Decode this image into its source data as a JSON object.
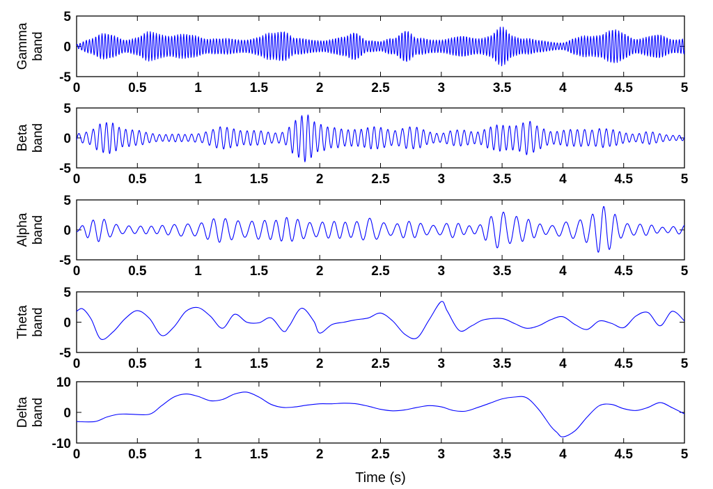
{
  "chart_data": [
    {
      "type": "line",
      "ylabel": [
        "Gamma",
        "band"
      ],
      "xlabel": "",
      "xlim": [
        0,
        5
      ],
      "ylim": [
        -5,
        5
      ],
      "xticks": [
        "0",
        "0.5",
        "1",
        "1.5",
        "2",
        "2.5",
        "3",
        "3.5",
        "4",
        "4.5",
        "5"
      ],
      "yticks": [
        "5",
        "0",
        "-5"
      ],
      "ytick_values": [
        5,
        0,
        -5
      ],
      "color": "#0000ff",
      "grid": false,
      "series": [
        {
          "oscillation_hz": 40,
          "x": [
            0,
            0.1,
            0.2,
            0.3,
            0.4,
            0.5,
            0.6,
            0.7,
            0.8,
            0.9,
            1.0,
            1.1,
            1.2,
            1.3,
            1.4,
            1.5,
            1.6,
            1.7,
            1.8,
            1.9,
            2.0,
            2.1,
            2.2,
            2.3,
            2.4,
            2.5,
            2.6,
            2.7,
            2.8,
            2.9,
            3.0,
            3.1,
            3.2,
            3.3,
            3.4,
            3.5,
            3.6,
            3.7,
            3.8,
            3.9,
            4.0,
            4.1,
            4.2,
            4.3,
            4.4,
            4.5,
            4.6,
            4.7,
            4.8,
            4.9,
            5.0
          ],
          "envelope": [
            0.4,
            1.6,
            2.2,
            2.0,
            1.5,
            1.7,
            2.5,
            2.6,
            2.2,
            2.0,
            2.1,
            1.6,
            1.3,
            1.4,
            1.5,
            1.6,
            2.4,
            3.6,
            1.5,
            1.2,
            1.3,
            1.4,
            1.6,
            3.0,
            1.2,
            0.8,
            1.6,
            3.6,
            1.4,
            1.3,
            1.5,
            1.6,
            1.8,
            1.8,
            2.0,
            3.3,
            2.2,
            1.6,
            1.0,
            0.9,
            0.8,
            1.4,
            2.0,
            2.6,
            2.9,
            2.4,
            1.7,
            1.8,
            2.0,
            1.6,
            1.6
          ]
        }
      ]
    },
    {
      "type": "line",
      "ylabel": [
        "Beta",
        "band"
      ],
      "xlabel": "",
      "xlim": [
        0,
        5
      ],
      "ylim": [
        -5,
        5
      ],
      "xticks": [
        "0",
        "0.5",
        "1",
        "1.5",
        "2",
        "2.5",
        "3",
        "3.5",
        "4",
        "4.5",
        "5"
      ],
      "yticks": [
        "5",
        "0",
        "-5"
      ],
      "ytick_values": [
        5,
        0,
        -5
      ],
      "color": "#0000ff",
      "grid": false,
      "series": [
        {
          "oscillation_hz": 18,
          "x": [
            0,
            0.1,
            0.2,
            0.3,
            0.4,
            0.5,
            0.6,
            0.7,
            0.8,
            0.9,
            1.0,
            1.1,
            1.2,
            1.3,
            1.4,
            1.5,
            1.6,
            1.7,
            1.8,
            1.9,
            2.0,
            2.1,
            2.2,
            2.3,
            2.4,
            2.5,
            2.6,
            2.7,
            2.8,
            2.9,
            3.0,
            3.1,
            3.2,
            3.3,
            3.4,
            3.5,
            3.6,
            3.7,
            3.8,
            3.9,
            4.0,
            4.1,
            4.2,
            4.3,
            4.4,
            4.5,
            4.6,
            4.7,
            4.8,
            4.9,
            5.0
          ],
          "envelope": [
            1.0,
            1.4,
            2.4,
            3.0,
            2.0,
            1.3,
            0.9,
            0.8,
            0.7,
            0.6,
            1.0,
            1.5,
            1.9,
            2.0,
            1.5,
            1.2,
            1.1,
            1.3,
            3.0,
            4.5,
            3.2,
            1.8,
            1.5,
            2.0,
            2.0,
            1.8,
            1.7,
            2.1,
            1.8,
            1.3,
            1.0,
            1.3,
            1.5,
            1.4,
            1.9,
            2.4,
            2.9,
            3.1,
            2.0,
            1.5,
            1.5,
            1.4,
            1.8,
            2.0,
            1.4,
            1.1,
            0.9,
            1.1,
            0.8,
            0.6,
            0.5
          ]
        }
      ]
    },
    {
      "type": "line",
      "ylabel": [
        "Alpha",
        "band"
      ],
      "xlabel": "",
      "xlim": [
        0,
        5
      ],
      "ylim": [
        -5,
        5
      ],
      "xticks": [
        "0",
        "0.5",
        "1",
        "1.5",
        "2",
        "2.5",
        "3",
        "3.5",
        "4",
        "4.5",
        "5"
      ],
      "yticks": [
        "5",
        "0",
        "-5"
      ],
      "ytick_values": [
        5,
        0,
        -5
      ],
      "color": "#0000ff",
      "grid": false,
      "series": [
        {
          "oscillation_hz": 10,
          "x": [
            0,
            0.1,
            0.2,
            0.3,
            0.4,
            0.5,
            0.6,
            0.7,
            0.8,
            0.9,
            1.0,
            1.1,
            1.2,
            1.3,
            1.4,
            1.5,
            1.6,
            1.7,
            1.8,
            1.9,
            2.0,
            2.1,
            2.2,
            2.3,
            2.4,
            2.5,
            2.6,
            2.7,
            2.8,
            2.9,
            3.0,
            3.1,
            3.2,
            3.3,
            3.4,
            3.5,
            3.6,
            3.7,
            3.8,
            3.9,
            4.0,
            4.1,
            4.2,
            4.3,
            4.4,
            4.5,
            4.6,
            4.7,
            4.8,
            4.9,
            5.0
          ],
          "envelope": [
            0.5,
            1.6,
            2.0,
            1.4,
            0.8,
            0.6,
            0.8,
            1.0,
            0.9,
            1.2,
            1.5,
            1.8,
            2.2,
            2.3,
            1.4,
            1.6,
            2.2,
            2.4,
            1.8,
            1.7,
            1.6,
            1.4,
            1.6,
            1.9,
            2.0,
            1.5,
            1.3,
            1.5,
            1.3,
            1.1,
            1.0,
            1.3,
            1.0,
            0.9,
            2.2,
            3.9,
            3.0,
            1.8,
            1.2,
            1.0,
            1.3,
            1.5,
            3.0,
            4.4,
            3.2,
            1.6,
            1.1,
            0.9,
            0.6,
            0.7,
            0.8
          ]
        }
      ]
    },
    {
      "type": "line",
      "ylabel": [
        "Theta",
        "band"
      ],
      "xlabel": "",
      "xlim": [
        0,
        5
      ],
      "ylim": [
        -5,
        5
      ],
      "xticks": [
        "0",
        "0.5",
        "1",
        "1.5",
        "2",
        "2.5",
        "3",
        "3.5",
        "4",
        "4.5",
        "5"
      ],
      "yticks": [
        "5",
        "0",
        "-5"
      ],
      "ytick_values": [
        5,
        0,
        -5
      ],
      "color": "#0000ff",
      "grid": false,
      "series": [
        {
          "x": [
            0,
            0.05,
            0.12,
            0.2,
            0.3,
            0.4,
            0.5,
            0.6,
            0.7,
            0.8,
            0.9,
            1.0,
            1.1,
            1.2,
            1.3,
            1.4,
            1.5,
            1.6,
            1.7,
            1.75,
            1.85,
            1.95,
            2.0,
            2.1,
            2.2,
            2.3,
            2.4,
            2.5,
            2.6,
            2.7,
            2.8,
            2.9,
            3.0,
            3.05,
            3.15,
            3.25,
            3.35,
            3.5,
            3.6,
            3.7,
            3.8,
            3.9,
            4.0,
            4.1,
            4.2,
            4.3,
            4.4,
            4.5,
            4.6,
            4.7,
            4.8,
            4.9,
            5.0
          ],
          "y": [
            1.8,
            2.2,
            0.5,
            -2.8,
            -1.6,
            0.6,
            1.9,
            0.6,
            -2.2,
            -0.8,
            1.8,
            2.4,
            1.0,
            -1.0,
            1.3,
            0.0,
            -0.1,
            0.7,
            -1.5,
            -0.6,
            2.3,
            0.2,
            -1.8,
            -0.4,
            0.0,
            0.4,
            0.7,
            1.5,
            0.2,
            -2.0,
            -2.6,
            0.4,
            3.4,
            1.8,
            -1.4,
            -0.6,
            0.4,
            0.6,
            -0.2,
            -1.0,
            -0.6,
            0.4,
            0.9,
            -0.4,
            -1.2,
            0.2,
            -0.2,
            -0.9,
            1.0,
            1.6,
            -0.6,
            1.8,
            0.2
          ]
        }
      ]
    },
    {
      "type": "line",
      "ylabel": [
        "Delta",
        "band"
      ],
      "xlabel": "Time (s)",
      "xlim": [
        0,
        5
      ],
      "ylim": [
        -10,
        10
      ],
      "xticks": [
        "0",
        "0.5",
        "1",
        "1.5",
        "2",
        "2.5",
        "3",
        "3.5",
        "4",
        "4.5",
        "5"
      ],
      "yticks": [
        "10",
        "0",
        "-10"
      ],
      "ytick_values": [
        10,
        0,
        -10
      ],
      "color": "#0000ff",
      "grid": false,
      "series": [
        {
          "x": [
            0,
            0.15,
            0.25,
            0.35,
            0.45,
            0.6,
            0.7,
            0.8,
            0.9,
            1.0,
            1.1,
            1.2,
            1.3,
            1.4,
            1.5,
            1.6,
            1.7,
            1.8,
            1.9,
            2.0,
            2.1,
            2.2,
            2.3,
            2.4,
            2.5,
            2.6,
            2.7,
            2.8,
            2.9,
            3.0,
            3.1,
            3.2,
            3.3,
            3.4,
            3.5,
            3.6,
            3.7,
            3.8,
            3.9,
            3.95,
            4.0,
            4.1,
            4.2,
            4.3,
            4.4,
            4.5,
            4.6,
            4.7,
            4.8,
            4.9,
            5.0
          ],
          "y": [
            -3.0,
            -3.0,
            -1.5,
            -0.6,
            -0.6,
            -0.6,
            2.2,
            5.0,
            6.0,
            5.2,
            3.8,
            4.2,
            6.0,
            6.6,
            5.0,
            2.6,
            1.6,
            1.8,
            2.4,
            2.8,
            2.8,
            3.0,
            2.8,
            2.0,
            1.0,
            0.5,
            0.8,
            1.6,
            2.2,
            1.8,
            0.6,
            0.4,
            1.6,
            3.0,
            4.4,
            5.0,
            4.8,
            1.0,
            -4.5,
            -6.5,
            -8.0,
            -6.0,
            -1.5,
            2.2,
            2.6,
            1.2,
            0.6,
            1.6,
            3.2,
            1.5,
            -0.5
          ]
        }
      ]
    }
  ]
}
